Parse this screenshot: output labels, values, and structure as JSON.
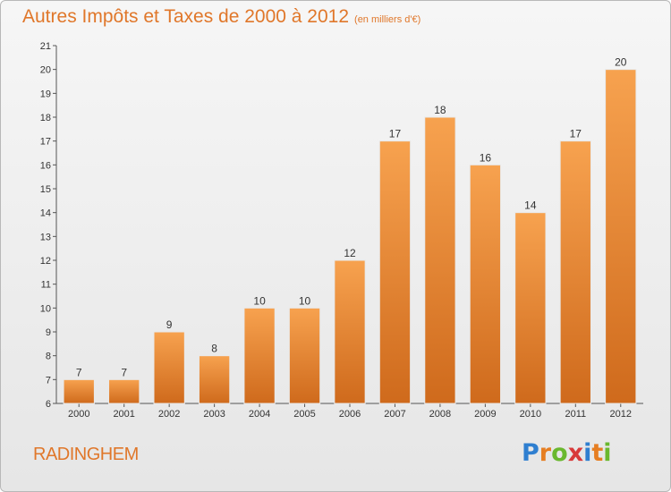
{
  "header": {
    "title": "Autres Impôts et Taxes de 2000 à 2012",
    "unit": "(en milliers d'€)"
  },
  "commune": "RADINGHEM",
  "logo": {
    "text": "Proxiti",
    "letters": [
      {
        "ch": "P",
        "color": "#2f7fd0"
      },
      {
        "ch": "r",
        "color": "#e67e22"
      },
      {
        "ch": "o",
        "color": "#6ab82e"
      },
      {
        "ch": "x",
        "color": "#d83a3a"
      },
      {
        "ch": "i",
        "color": "#2f7fd0"
      },
      {
        "ch": "t",
        "color": "#e67e22"
      },
      {
        "ch": "i",
        "color": "#6ab82e"
      }
    ]
  },
  "colors": {
    "accent": "#e0772a",
    "bar_light": "#f7a24f",
    "bar_dark": "#cf6a1c"
  },
  "chart_data": {
    "type": "bar",
    "title": "Autres Impôts et Taxes de 2000 à 2012",
    "subtitle": "(en milliers d'€)",
    "xlabel": "",
    "ylabel": "",
    "categories": [
      "2000",
      "2001",
      "2002",
      "2003",
      "2004",
      "2005",
      "2006",
      "2007",
      "2008",
      "2009",
      "2010",
      "2011",
      "2012"
    ],
    "values": [
      7,
      7,
      9,
      8,
      10,
      10,
      12,
      17,
      18,
      16,
      14,
      17,
      20
    ],
    "ylim": [
      6,
      21
    ],
    "yticks": [
      6,
      7,
      8,
      9,
      10,
      11,
      12,
      13,
      14,
      15,
      16,
      17,
      18,
      19,
      20,
      21
    ],
    "grid": false,
    "legend": "none"
  }
}
